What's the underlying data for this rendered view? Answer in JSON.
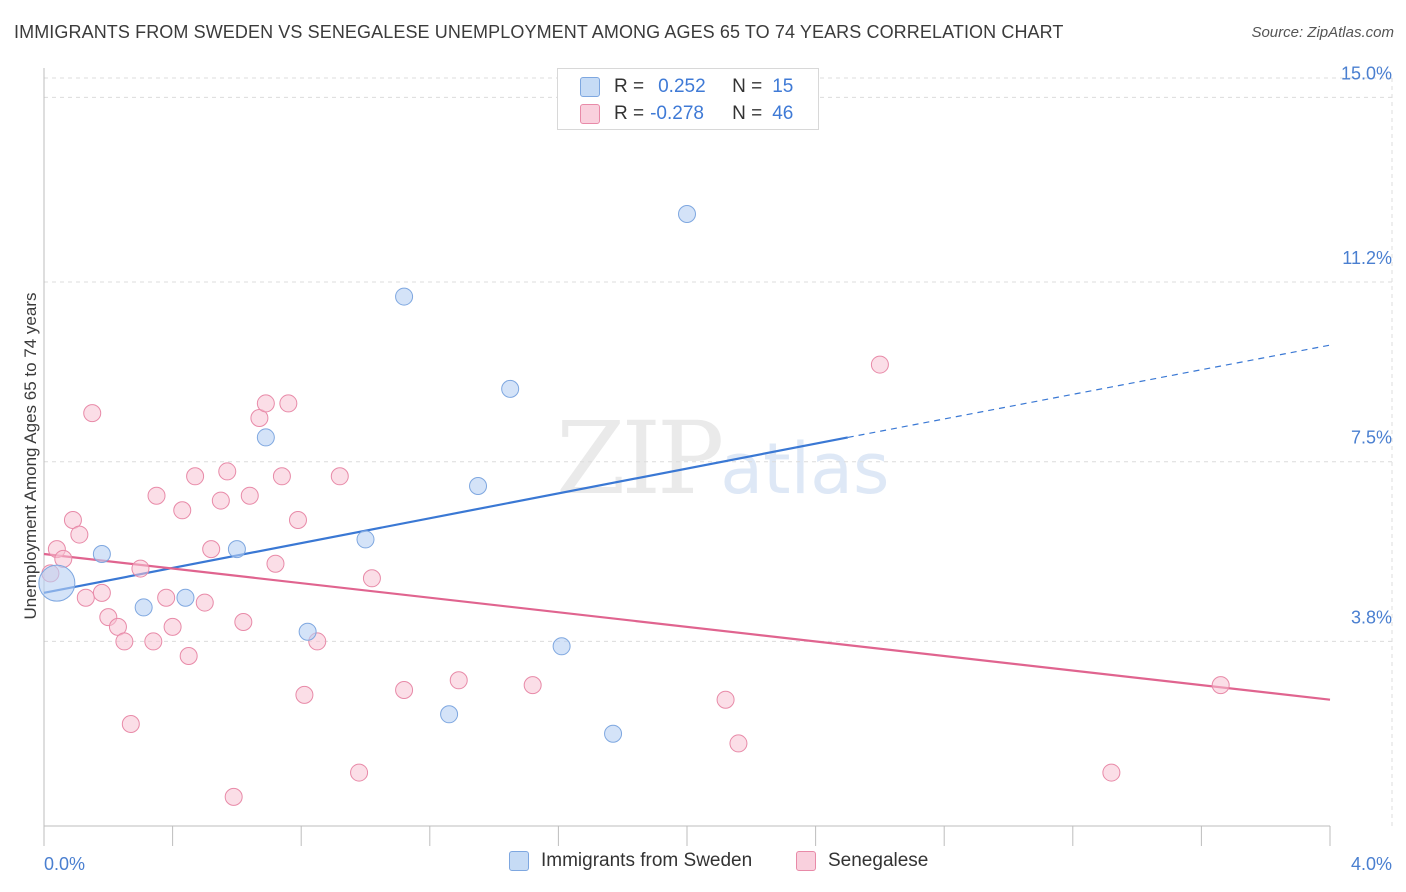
{
  "title": "IMMIGRANTS FROM SWEDEN VS SENEGALESE UNEMPLOYMENT AMONG AGES 65 TO 74 YEARS CORRELATION CHART",
  "source": "Source: ZipAtlas.com",
  "watermark": {
    "zip": "ZIP",
    "atlas": "atlas"
  },
  "legend": {
    "rows": [
      {
        "r_label": "R =",
        "r_value": "0.252",
        "n_label": "N =",
        "n_value": "15",
        "color": "#b8d1f3"
      },
      {
        "r_label": "R =",
        "r_value": "-0.278",
        "n_label": "N =",
        "n_value": "46",
        "color": "#f7c3d3"
      }
    ]
  },
  "colors": {
    "blue_fill": "#b8d1f3",
    "blue_stroke": "#7ea7e0",
    "blue_line": "#3a78d4",
    "pink_fill": "#f7c3d3",
    "pink_stroke": "#e88aa8",
    "pink_line": "#e0648f",
    "grid": "#dcdcdc",
    "tick_label": "#4a7fd0"
  },
  "chart_data": {
    "type": "scatter",
    "title": "IMMIGRANTS FROM SWEDEN VS SENEGALESE UNEMPLOYMENT AMONG AGES 65 TO 74 YEARS CORRELATION CHART",
    "xlabel": "",
    "ylabel": "Unemployment Among Ages 65 to 74 years",
    "xlim": [
      0,
      4.0
    ],
    "ylim": [
      0,
      15.4
    ],
    "x_tick_labels": [
      "0.0%",
      "4.0%"
    ],
    "y_ticks": [
      3.8,
      7.5,
      11.2,
      15.0
    ],
    "y_tick_labels": [
      "3.8%",
      "7.5%",
      "11.2%",
      "15.0%"
    ],
    "grid": true,
    "series": [
      {
        "name": "Immigrants from Sweden",
        "legend_label": "Immigrants from Sweden",
        "points": [
          {
            "x": 0.04,
            "y": 5.0,
            "size": "large"
          },
          {
            "x": 0.18,
            "y": 5.6
          },
          {
            "x": 0.31,
            "y": 4.5
          },
          {
            "x": 0.44,
            "y": 4.7
          },
          {
            "x": 0.6,
            "y": 5.7
          },
          {
            "x": 0.69,
            "y": 8.0
          },
          {
            "x": 0.82,
            "y": 4.0
          },
          {
            "x": 1.0,
            "y": 5.9
          },
          {
            "x": 1.12,
            "y": 10.9
          },
          {
            "x": 1.26,
            "y": 2.3
          },
          {
            "x": 1.35,
            "y": 7.0
          },
          {
            "x": 1.45,
            "y": 9.0
          },
          {
            "x": 1.61,
            "y": 3.7
          },
          {
            "x": 1.77,
            "y": 1.9
          },
          {
            "x": 2.0,
            "y": 12.6
          }
        ],
        "trend": {
          "x0": 0.0,
          "y0": 4.8,
          "x1": 2.5,
          "y1": 8.0,
          "x_dash_end": 4.0,
          "y_dash_end": 9.9
        }
      },
      {
        "name": "Senegalese",
        "legend_label": "Senegalese",
        "points": [
          {
            "x": 0.02,
            "y": 5.2
          },
          {
            "x": 0.04,
            "y": 5.7
          },
          {
            "x": 0.06,
            "y": 5.5
          },
          {
            "x": 0.09,
            "y": 6.3
          },
          {
            "x": 0.11,
            "y": 6.0
          },
          {
            "x": 0.13,
            "y": 4.7
          },
          {
            "x": 0.15,
            "y": 8.5
          },
          {
            "x": 0.18,
            "y": 4.8
          },
          {
            "x": 0.2,
            "y": 4.3
          },
          {
            "x": 0.23,
            "y": 4.1
          },
          {
            "x": 0.25,
            "y": 3.8
          },
          {
            "x": 0.27,
            "y": 2.1
          },
          {
            "x": 0.3,
            "y": 5.3
          },
          {
            "x": 0.34,
            "y": 3.8
          },
          {
            "x": 0.35,
            "y": 6.8
          },
          {
            "x": 0.38,
            "y": 4.7
          },
          {
            "x": 0.4,
            "y": 4.1
          },
          {
            "x": 0.43,
            "y": 6.5
          },
          {
            "x": 0.45,
            "y": 3.5
          },
          {
            "x": 0.47,
            "y": 7.2
          },
          {
            "x": 0.5,
            "y": 4.6
          },
          {
            "x": 0.52,
            "y": 5.7
          },
          {
            "x": 0.55,
            "y": 6.7
          },
          {
            "x": 0.57,
            "y": 7.3
          },
          {
            "x": 0.59,
            "y": 0.6
          },
          {
            "x": 0.62,
            "y": 4.2
          },
          {
            "x": 0.64,
            "y": 6.8
          },
          {
            "x": 0.67,
            "y": 8.4
          },
          {
            "x": 0.69,
            "y": 8.7
          },
          {
            "x": 0.72,
            "y": 5.4
          },
          {
            "x": 0.74,
            "y": 7.2
          },
          {
            "x": 0.76,
            "y": 8.7
          },
          {
            "x": 0.79,
            "y": 6.3
          },
          {
            "x": 0.81,
            "y": 2.7
          },
          {
            "x": 0.85,
            "y": 3.8
          },
          {
            "x": 0.92,
            "y": 7.2
          },
          {
            "x": 0.98,
            "y": 1.1
          },
          {
            "x": 1.02,
            "y": 5.1
          },
          {
            "x": 1.12,
            "y": 2.8
          },
          {
            "x": 1.29,
            "y": 3.0
          },
          {
            "x": 1.52,
            "y": 2.9
          },
          {
            "x": 2.12,
            "y": 2.6
          },
          {
            "x": 2.16,
            "y": 1.7
          },
          {
            "x": 2.6,
            "y": 9.5
          },
          {
            "x": 3.32,
            "y": 1.1
          },
          {
            "x": 3.66,
            "y": 2.9
          }
        ],
        "trend": {
          "x0": 0.0,
          "y0": 5.6,
          "x1": 4.0,
          "y1": 2.6
        }
      }
    ]
  }
}
